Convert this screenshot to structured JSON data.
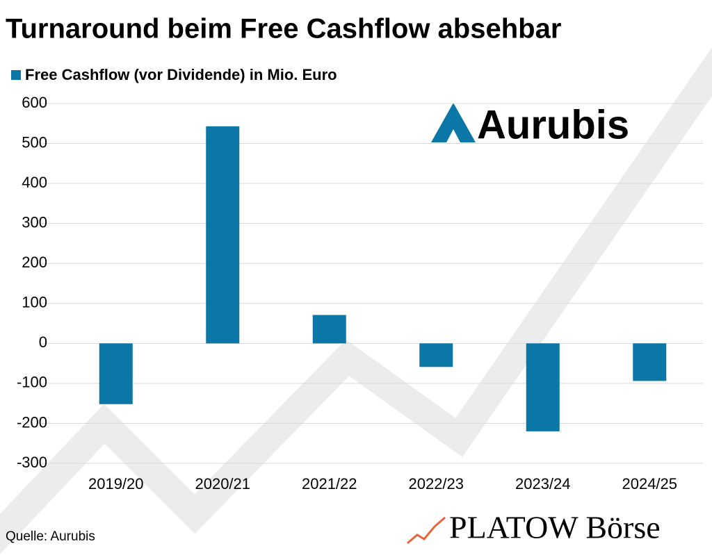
{
  "chart_data": {
    "type": "bar",
    "title": "Turnaround beim Free Cashflow absehbar",
    "series": [
      {
        "name": "Free Cashflow (vor Dividende) in Mio. Euro",
        "color": "#0a77a6",
        "values": [
          -152,
          543,
          71,
          -59,
          -220,
          -94
        ]
      }
    ],
    "categories": [
      "2019/20",
      "2020/21",
      "2021/22",
      "2022/23",
      "2023/24",
      "2024/25"
    ],
    "ylim": [
      -300,
      600
    ],
    "yticks": [
      -300,
      -200,
      -100,
      0,
      100,
      200,
      300,
      400,
      500,
      600
    ],
    "grid": true,
    "legend": "top-left",
    "source": "Quelle: Aurubis"
  },
  "logos": {
    "aurubis": "Aurubis",
    "platow": "PLATOW Börse"
  }
}
